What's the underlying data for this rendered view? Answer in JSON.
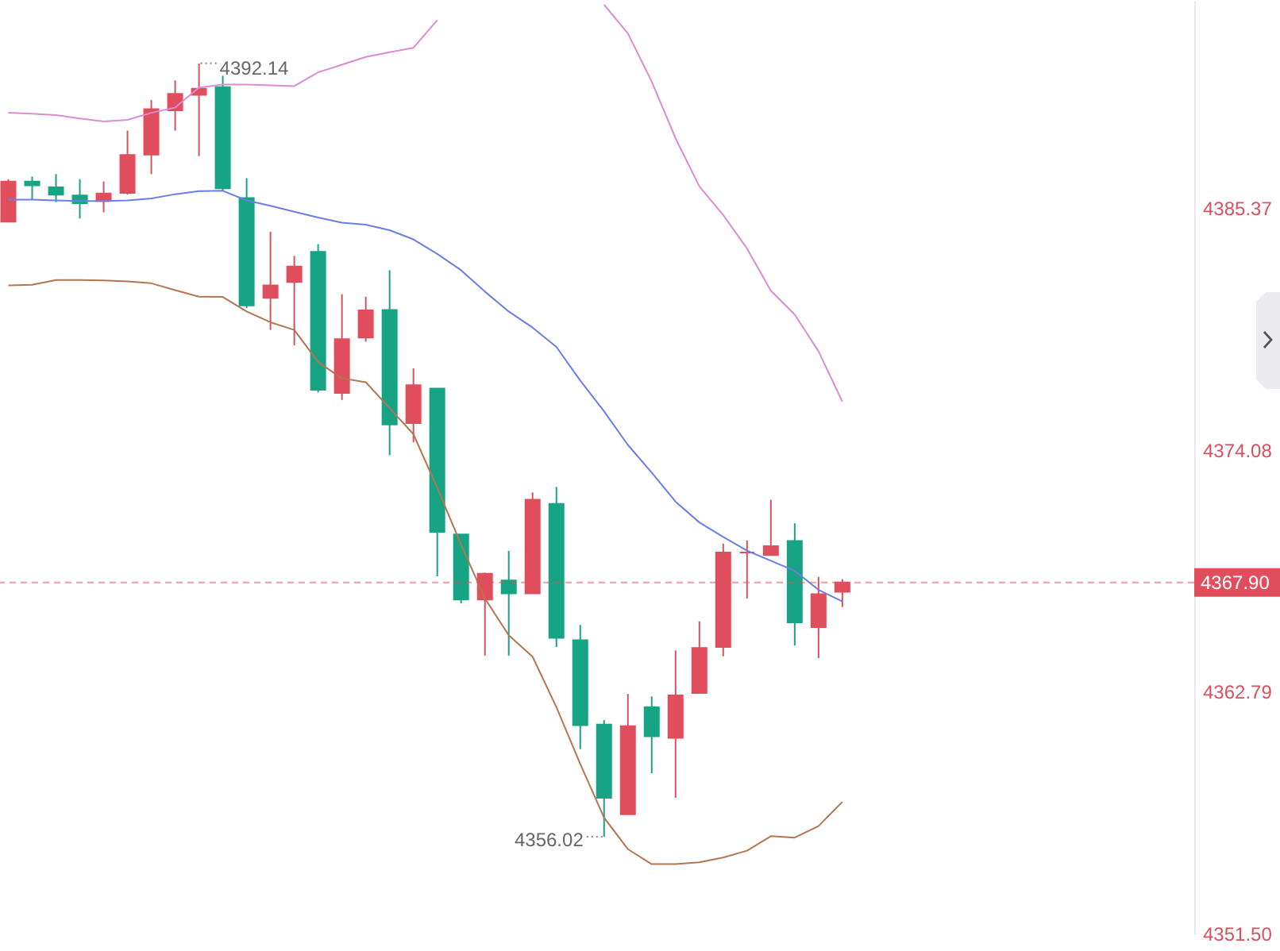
{
  "chart_data": {
    "type": "candlestick",
    "categories": [
      null,
      null,
      null,
      null,
      null,
      null,
      null,
      null,
      null,
      null,
      null,
      null,
      null,
      null,
      null,
      null,
      null,
      null,
      null,
      null,
      null,
      null,
      null,
      null,
      null,
      null,
      null,
      null,
      null,
      null,
      null,
      null,
      null,
      null,
      null,
      null
    ],
    "ohlc": [
      [
        4384.75,
        4386.73,
        4384.75,
        4386.62
      ],
      [
        4386.62,
        4386.85,
        4385.78,
        4386.44
      ],
      [
        4386.35,
        4386.97,
        4385.66,
        4386.01
      ],
      [
        4385.97,
        4386.73,
        4384.9,
        4385.61
      ],
      [
        4385.71,
        4386.62,
        4385.18,
        4386.06
      ],
      [
        4386.09,
        4389.0,
        4386.01,
        4387.86
      ],
      [
        4387.88,
        4390.43,
        4386.97,
        4390.0
      ],
      [
        4389.95,
        4391.34,
        4389.0,
        4390.72
      ],
      [
        4390.67,
        4392.14,
        4387.81,
        4390.96
      ],
      [
        4391.03,
        4391.56,
        4386.19,
        4386.3
      ],
      [
        4385.85,
        4386.78,
        4380.71,
        4380.84
      ],
      [
        4381.19,
        4384.27,
        4379.69,
        4381.77
      ],
      [
        4381.93,
        4383.15,
        4378.97,
        4382.65
      ],
      [
        4383.34,
        4383.7,
        4376.77,
        4376.9
      ],
      [
        4376.75,
        4381.36,
        4376.42,
        4379.26
      ],
      [
        4379.33,
        4381.24,
        4379.14,
        4380.6
      ],
      [
        4380.62,
        4382.48,
        4373.84,
        4375.27
      ],
      [
        4375.34,
        4377.9,
        4374.44,
        4377.11
      ],
      [
        4376.95,
        4376.95,
        4368.18,
        4370.26
      ],
      [
        4370.14,
        4370.14,
        4366.92,
        4367.1
      ],
      [
        4367.1,
        4368.35,
        4364.48,
        4368.3
      ],
      [
        4367.99,
        4369.37,
        4364.48,
        4367.39
      ],
      [
        4367.39,
        4372.1,
        4367.39,
        4371.76
      ],
      [
        4371.57,
        4372.36,
        4364.88,
        4365.31
      ],
      [
        4365.2,
        4365.91,
        4360.11,
        4361.23
      ],
      [
        4361.26,
        4361.47,
        4356.02,
        4357.84
      ],
      [
        4357.07,
        4362.69,
        4357.07,
        4361.19
      ],
      [
        4362.07,
        4362.57,
        4358.99,
        4360.71
      ],
      [
        4360.64,
        4364.72,
        4357.84,
        4362.62
      ],
      [
        4362.73,
        4366.08,
        4362.73,
        4364.84
      ],
      [
        4364.88,
        4369.71,
        4364.45,
        4369.3
      ],
      [
        4369.3,
        4369.85,
        4367.15,
        4369.3
      ],
      [
        4369.18,
        4371.76,
        4369.18,
        4369.59
      ],
      [
        4369.83,
        4370.66,
        4364.95,
        4366.03
      ],
      [
        4365.81,
        4368.16,
        4364.36,
        4367.35
      ],
      [
        4367.46,
        4368.05,
        4366.75,
        4367.9
      ]
    ],
    "colors": [
      "#e04e5d",
      "#17a484",
      "#17a484",
      "#17a484",
      "#e04e5d",
      "#e04e5d",
      "#e04e5d",
      "#e04e5d",
      "#e04e5d",
      "#17a484",
      "#17a484",
      "#e04e5d",
      "#e04e5d",
      "#17a484",
      "#e04e5d",
      "#e04e5d",
      "#17a484",
      "#e04e5d",
      "#17a484",
      "#17a484",
      "#e04e5d",
      "#17a484",
      "#e04e5d",
      "#17a484",
      "#17a484",
      "#17a484",
      "#e04e5d",
      "#17a484",
      "#e04e5d",
      "#e04e5d",
      "#e04e5d",
      "#e04e5d",
      "#e04e5d",
      "#17a484",
      "#e04e5d",
      "#e04e5d"
    ],
    "series": [
      {
        "type": "line",
        "color": "#dc8cd2",
        "values": [
          4389.84,
          4389.79,
          4389.72,
          4389.57,
          4389.43,
          4389.5,
          4389.83,
          4390.08,
          4391.01,
          4391.15,
          4391.15,
          4391.11,
          4391.08,
          4391.72,
          4392.08,
          4392.44,
          4392.66,
          4392.87,
          4394.16,
          null,
          null,
          null,
          null,
          null,
          null,
          4394.88,
          4393.54,
          4391.29,
          4388.64,
          4386.39,
          4385.06,
          4383.49,
          4381.52,
          4380.41,
          4378.69,
          4376.34
        ]
      },
      {
        "type": "line",
        "color": "#6a7fe6",
        "values": [
          4385.78,
          4385.78,
          4385.74,
          4385.71,
          4385.71,
          4385.74,
          4385.83,
          4386.03,
          4386.17,
          4386.19,
          4385.74,
          4385.49,
          4385.21,
          4384.94,
          4384.7,
          4384.61,
          4384.35,
          4383.92,
          4383.24,
          4382.48,
          4381.48,
          4380.55,
          4379.8,
          4378.9,
          4377.33,
          4375.89,
          4374.32,
          4373.03,
          4371.67,
          4370.7,
          4370.02,
          4369.38,
          4368.91,
          4368.44,
          4367.55,
          4367.01
        ]
      },
      {
        "type": "line",
        "color": "#b5764f",
        "values": [
          4381.77,
          4381.8,
          4382.02,
          4382.02,
          4382.0,
          4381.96,
          4381.87,
          4381.55,
          4381.24,
          4381.23,
          4380.55,
          4380.05,
          4379.69,
          4378.19,
          4377.43,
          4377.25,
          4376.04,
          4374.82,
          4372.31,
          4369.66,
          4367.15,
          4365.43,
          4364.43,
          4362.07,
          4359.42,
          4356.91,
          4355.44,
          4354.74,
          4354.74,
          4354.83,
          4355.05,
          4355.37,
          4356.05,
          4355.98,
          4356.52,
          4357.65
        ]
      }
    ],
    "ylim": [
      4351.5,
      4395.1
    ],
    "yticks": [
      {
        "value": 4351.5,
        "label": "4351.50"
      },
      4362.79,
      4374.08,
      4385.37
    ],
    "ref_lines": [
      {
        "axis": "y",
        "value": 4367.9,
        "label": "4367.90",
        "color": "#e04e5d",
        "line_style": "dashed"
      }
    ],
    "annotations": [
      "4392.14",
      "4356.02"
    ],
    "tick_labels": "y"
  }
}
